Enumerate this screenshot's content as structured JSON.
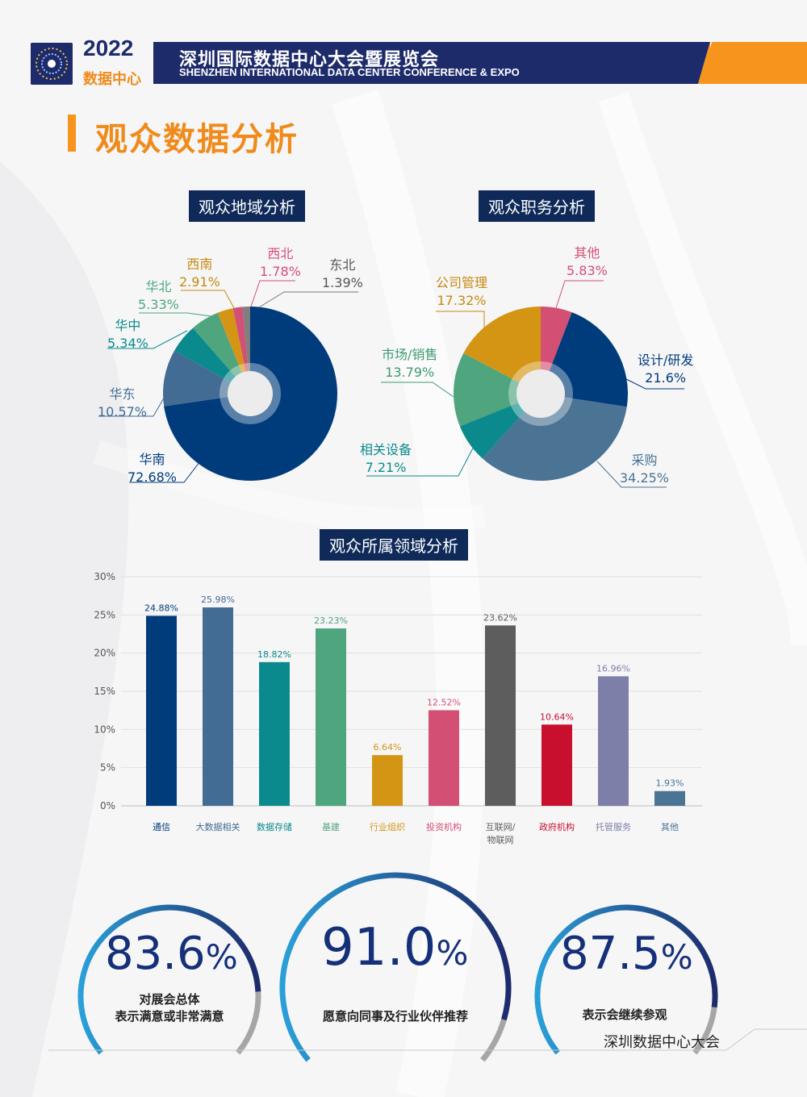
{
  "header": {
    "year": "2022",
    "sub": "数据中心",
    "title_cn": "深圳国际数据中心大会暨展览会",
    "title_en": "SHENZHEN INTERNATIONAL DATA CENTER CONFERENCE & EXPO"
  },
  "section_title": "观众数据分析",
  "chart_data": [
    {
      "type": "pie",
      "title": "观众地域分析",
      "slices": [
        {
          "name": "华南",
          "value": 72.68,
          "label": "72.68%",
          "color": "#003c7c"
        },
        {
          "name": "华东",
          "value": 10.57,
          "label": "10.57%",
          "color": "#426c93"
        },
        {
          "name": "华中",
          "value": 5.34,
          "label": "5.34%",
          "color": "#0a8a8c"
        },
        {
          "name": "华北",
          "value": 5.33,
          "label": "5.33%",
          "color": "#4ea57e"
        },
        {
          "name": "西南",
          "value": 2.91,
          "label": "2.91%",
          "color": "#d49515"
        },
        {
          "name": "西北",
          "value": 1.78,
          "label": "1.78%",
          "color": "#d44f74"
        },
        {
          "name": "东北",
          "value": 1.39,
          "label": "1.39%",
          "color": "#7f7f7f"
        }
      ]
    },
    {
      "type": "pie",
      "title": "观众职务分析",
      "slices": [
        {
          "name": "其他",
          "value": 5.83,
          "label": "5.83%",
          "color": "#d44f74"
        },
        {
          "name": "设计/研发",
          "value": 21.6,
          "label": "21.6%",
          "color": "#003c7c"
        },
        {
          "name": "采购",
          "value": 34.25,
          "label": "34.25%",
          "color": "#4a7394"
        },
        {
          "name": "相关设备",
          "value": 7.21,
          "label": "7.21%",
          "color": "#0a8a8c"
        },
        {
          "name": "市场/销售",
          "value": 13.79,
          "label": "13.79%",
          "color": "#4ea57e"
        },
        {
          "name": "公司管理",
          "value": 17.32,
          "label": "17.32%",
          "color": "#d49515"
        }
      ]
    },
    {
      "type": "bar",
      "title": "观众所属领域分析",
      "ylim": [
        0,
        30
      ],
      "yticks": [
        "0%",
        "5%",
        "10%",
        "15%",
        "20%",
        "25%",
        "30%"
      ],
      "grid": true,
      "bars": [
        {
          "category": "通信",
          "value": 24.88,
          "label": "24.88%",
          "color": "#003c7c"
        },
        {
          "category": "大数据相关",
          "value": 25.98,
          "label": "25.98%",
          "color": "#426c93"
        },
        {
          "category": "数据存储",
          "value": 18.82,
          "label": "18.82%",
          "color": "#0a8a8c"
        },
        {
          "category": "基建",
          "value": 23.23,
          "label": "23.23%",
          "color": "#4ea57e"
        },
        {
          "category": "行业组织",
          "value": 6.64,
          "label": "6.64%",
          "color": "#d49515"
        },
        {
          "category": "投资机构",
          "value": 12.52,
          "label": "12.52%",
          "color": "#d44f74"
        },
        {
          "category": "互联网/\n物联网",
          "value": 23.62,
          "label": "23.62%",
          "color": "#5d5d5d"
        },
        {
          "category": "政府机构",
          "value": 10.64,
          "label": "10.64%",
          "color": "#c8102e"
        },
        {
          "category": "托管服务",
          "value": 16.96,
          "label": "16.96%",
          "color": "#7d7fa8"
        },
        {
          "category": "其他",
          "value": 1.93,
          "label": "1.93%",
          "color": "#4a7394"
        }
      ]
    }
  ],
  "gauges": [
    {
      "value": 83.6,
      "number": "83.6",
      "unit": "%",
      "caption": [
        "对展会总体",
        "表示满意或非常满意"
      ]
    },
    {
      "value": 91.0,
      "number": "91.0",
      "unit": "%",
      "caption": [
        "愿意向同事及行业伙伴推荐"
      ]
    },
    {
      "value": 87.5,
      "number": "87.5",
      "unit": "%",
      "caption": [
        "表示会继续参观"
      ]
    }
  ],
  "footer": "深圳数据中心大会"
}
